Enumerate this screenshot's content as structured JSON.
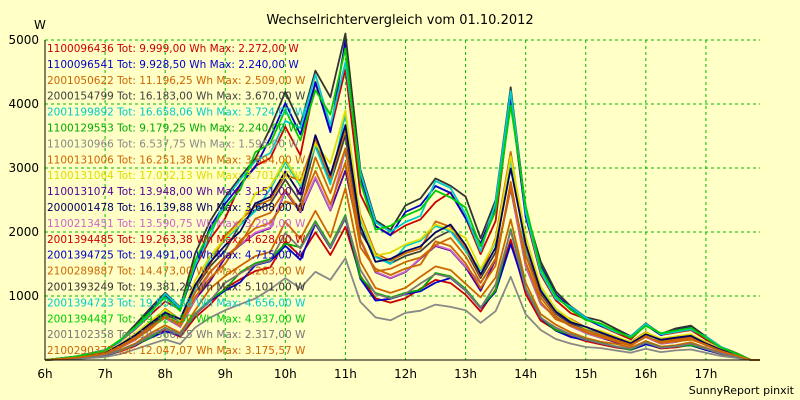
{
  "chart_data": {
    "type": "line",
    "title": "Wechselrichtervergleich vom 01.10.2012",
    "ylabel": "W",
    "xlabel": "",
    "ylim": [
      0,
      5000
    ],
    "xlim": [
      6,
      17.9
    ],
    "yticks": [
      1000,
      2000,
      3000,
      4000,
      5000
    ],
    "xticks": [
      {
        "v": 6,
        "label": "6h"
      },
      {
        "v": 7,
        "label": "7h"
      },
      {
        "v": 8,
        "label": "8h"
      },
      {
        "v": 9,
        "label": "9h"
      },
      {
        "v": 10,
        "label": "10h"
      },
      {
        "v": 11,
        "label": "11h"
      },
      {
        "v": 12,
        "label": "12h"
      },
      {
        "v": 13,
        "label": "13h"
      },
      {
        "v": 14,
        "label": "14h"
      },
      {
        "v": 15,
        "label": "15h"
      },
      {
        "v": 16,
        "label": "16h"
      },
      {
        "v": 17,
        "label": "17h"
      }
    ],
    "grid": true,
    "legend_position": "top-left",
    "footer": "SunnyReport pinxit",
    "x": [
      6,
      6.5,
      7,
      7.25,
      7.5,
      7.75,
      8,
      8.25,
      8.5,
      8.75,
      9,
      9.25,
      9.5,
      9.75,
      10,
      10.25,
      10.5,
      10.75,
      11,
      11.25,
      11.5,
      11.75,
      12,
      12.25,
      12.5,
      12.75,
      13,
      13.25,
      13.5,
      13.75,
      14,
      14.25,
      14.5,
      14.75,
      15,
      15.25,
      15.5,
      15.75,
      16,
      16.25,
      16.5,
      16.75,
      17,
      17.25,
      17.5,
      17.75,
      17.9
    ],
    "base_profile": [
      0,
      0.01,
      0.03,
      0.06,
      0.1,
      0.15,
      0.2,
      0.16,
      0.3,
      0.4,
      0.48,
      0.55,
      0.62,
      0.66,
      0.78,
      0.7,
      0.88,
      0.74,
      0.96,
      0.56,
      0.42,
      0.4,
      0.44,
      0.47,
      0.54,
      0.53,
      0.46,
      0.35,
      0.47,
      0.82,
      0.46,
      0.28,
      0.2,
      0.16,
      0.13,
      0.11,
      0.09,
      0.07,
      0.11,
      0.08,
      0.09,
      0.1,
      0.07,
      0.04,
      0.02,
      0,
      0
    ],
    "series": [
      {
        "name": "1100096436",
        "text": "1100096436 Tot: 9.999,00 Wh Max: 2.272,00 W",
        "color": "#cc0000",
        "scale": 2272
      },
      {
        "name": "1100096541",
        "text": "1100096541 Tot: 9.928,50 Wh Max: 2.240,00 W",
        "color": "#0000cc",
        "scale": 2240
      },
      {
        "name": "2001050622",
        "text": "2001050622 Tot: 11.196,25 Wh Max: 2.509,00 W",
        "color": "#cc6600",
        "scale": 2509
      },
      {
        "name": "2000154799",
        "text": "2000154799 Tot: 16.183,00 Wh Max: 3.670,00 W",
        "color": "#404040",
        "scale": 3670
      },
      {
        "name": "2001199892",
        "text": "2001199892 Tot: 16.658,06 Wh Max: 3.724,00 W",
        "color": "#00cccc",
        "scale": 3724
      },
      {
        "name": "1100129553",
        "text": "1100129553 Tot: 9.179,25 Wh Max: 2.240,00 W",
        "color": "#00aa00",
        "scale": 2240
      },
      {
        "name": "1100130966",
        "text": "1100130966 Tot: 6.537,75 Wh Max: 1.596,00 W",
        "color": "#888888",
        "scale": 1596
      },
      {
        "name": "1100131006",
        "text": "1100131006 Tot: 16.251,38 Wh Max: 3.694,00 W",
        "color": "#cc6600",
        "scale": 3694
      },
      {
        "name": "1100131064",
        "text": "1100131064 Tot: 17.032,13 Wh Max: 3.701,00 W",
        "color": "#dddd00",
        "scale": 3701
      },
      {
        "name": "1100131074",
        "text": "1100131074 Tot: 13.948,00 Wh Max: 3.151,00 W",
        "color": "#550099",
        "scale": 3151
      },
      {
        "name": "2000001478",
        "text": "2000001478 Tot: 16.139,88 Wh Max: 3.608,00 W",
        "color": "#000066",
        "scale": 3608
      },
      {
        "name": "1100213451",
        "text": "1100213451 Tot: 13.590,75 Wh Max: 3.290,00 W",
        "color": "#cc66cc",
        "scale": 3290
      },
      {
        "name": "2001394485",
        "text": "2001394485 Tot: 19.263,38 Wh Max: 4.628,00 W",
        "color": "#cc0000",
        "scale": 4628
      },
      {
        "name": "2001394725",
        "text": "2001394725 Tot: 19.491,00 Wh Max: 4.715,00 W",
        "color": "#0000cc",
        "scale": 4715
      },
      {
        "name": "2100289887",
        "text": "2100289887 Tot: 14.473,00 Wh Max: 3.263,00 W",
        "color": "#cc6600",
        "scale": 3263
      },
      {
        "name": "2001393249",
        "text": "2001393249 Tot: 19.381,25 Wh Max: 5.101,00 W",
        "color": "#333333",
        "scale": 5101
      },
      {
        "name": "2001394723",
        "text": "2001394723 Tot: 19.532,88 Wh Max: 4.656,00 W",
        "color": "#00cccc",
        "scale": 4656
      },
      {
        "name": "2001394487",
        "text": "2001394487 Tot: 19.327,50 Wh Max: 4.937,00 W",
        "color": "#00cc00",
        "scale": 4937
      },
      {
        "name": "2001102358",
        "text": "2001102358 Tot: 10.366,25 Wh Max: 2.317,00 W",
        "color": "#777777",
        "scale": 2317
      },
      {
        "name": "2100290377",
        "text": "2100290377 Tot: 12.047,07 Wh Max: 3.175,57 W",
        "color": "#cc6600",
        "scale": 3176
      }
    ]
  }
}
